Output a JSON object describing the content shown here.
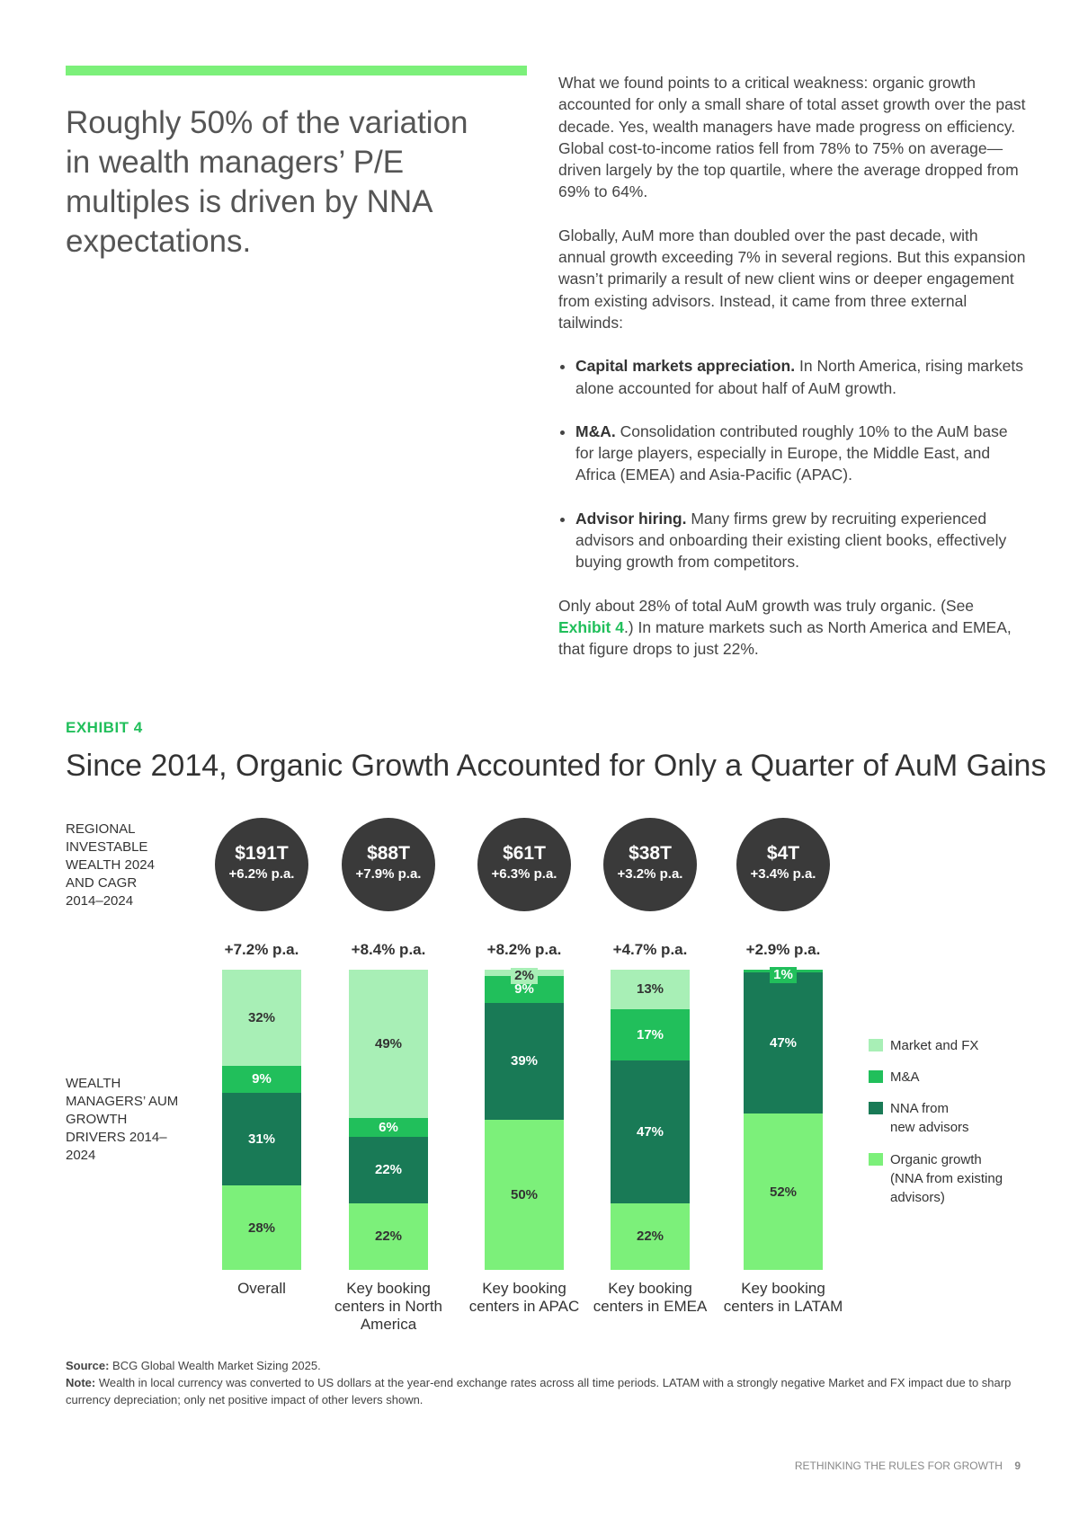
{
  "headline": "Roughly 50% of the variation in wealth managers’ P/E multiples is driven by NNA expectations.",
  "body": {
    "p1": "What we found points to a critical weakness: organic growth accounted for only a small share of total asset growth over the past decade. Yes, wealth managers have made progress on efficiency. Global cost-to-income ratios fell from 78% to 75% on average—driven largely by the top quartile, where the average dropped from 69% to 64%.",
    "p2": "Globally, AuM more than doubled over the past decade, with annual growth exceeding 7% in several regions. But this expansion wasn’t primarily a result of new client wins or deeper engagement from existing advisors. Instead, it came from three external tailwinds:",
    "bullets": [
      {
        "bold": "Capital markets appreciation.",
        "text": " In North America, rising markets alone accounted for about half of AuM growth."
      },
      {
        "bold": "M&A.",
        "text": " Consolidation contributed roughly 10% to the AuM base for large players, especially in Europe, the Middle East, and Africa (EMEA) and Asia-Pacific (APAC)."
      },
      {
        "bold": "Advisor hiring.",
        "text": " Many firms grew by recruiting experienced advisors and onboarding their existing client books, effectively buying growth from competitors."
      }
    ],
    "p3a": "Only about 28% of total AuM growth was truly organic. (See ",
    "p3link": "Exhibit 4",
    "p3b": ".) In mature markets such as North America and EMEA, that figure drops to just 22%."
  },
  "exhibit_label": "EXHIBIT 4",
  "colors": {
    "accent": "#7cf07a",
    "market_fx": "#a8efb6",
    "ma": "#21bf5b",
    "nna_new": "#197a56",
    "organic": "#7cf07a",
    "circle": "#3a3a3a"
  },
  "chart_data": {
    "type": "bar",
    "stacked": true,
    "title": "Since 2014, Organic Growth Accounted for Only a Quarter of AuM Gains",
    "top_label": "REGIONAL INVESTABLE WEALTH 2024 AND CAGR 2014–2024",
    "side_label": "WEALTH MANAGERS’ AUM GROWTH DRIVERS 2014–2024",
    "categories": [
      "Overall",
      "Key booking centers in North America",
      "Key booking centers in APAC",
      "Key booking centers in EMEA",
      "Key booking centers in LATAM"
    ],
    "wealth": [
      "$191T",
      "$88T",
      "$61T",
      "$38T",
      "$4T"
    ],
    "wealth_cagr": [
      "+6.2% p.a.",
      "+7.9% p.a.",
      "+6.3% p.a.",
      "+3.2% p.a.",
      "+3.4% p.a."
    ],
    "aum_cagr": [
      "+7.2% p.a.",
      "+8.4% p.a.",
      "+8.2% p.a.",
      "+4.7% p.a.",
      "+2.9% p.a."
    ],
    "series": [
      {
        "name": "Organic growth (NNA from existing advisors)",
        "values": [
          28,
          22,
          50,
          22,
          52
        ]
      },
      {
        "name": "NNA from new advisors",
        "values": [
          31,
          22,
          39,
          47,
          47
        ]
      },
      {
        "name": "M&A",
        "values": [
          9,
          6,
          9,
          17,
          1
        ]
      },
      {
        "name": "Market and FX",
        "values": [
          32,
          49,
          2,
          13,
          0
        ]
      }
    ],
    "unit": "%"
  },
  "source_label": "Source:",
  "source": " BCG Global Wealth Market Sizing 2025.",
  "note_label": "Note:",
  "note": " Wealth in local currency was converted to US dollars at the year-end exchange rates across all time periods. LATAM with a strongly negative Market and FX impact due to sharp currency depreciation; only net positive impact of other levers shown.",
  "footer": {
    "title": "RETHINKING THE RULES FOR GROWTH",
    "page": "9"
  }
}
